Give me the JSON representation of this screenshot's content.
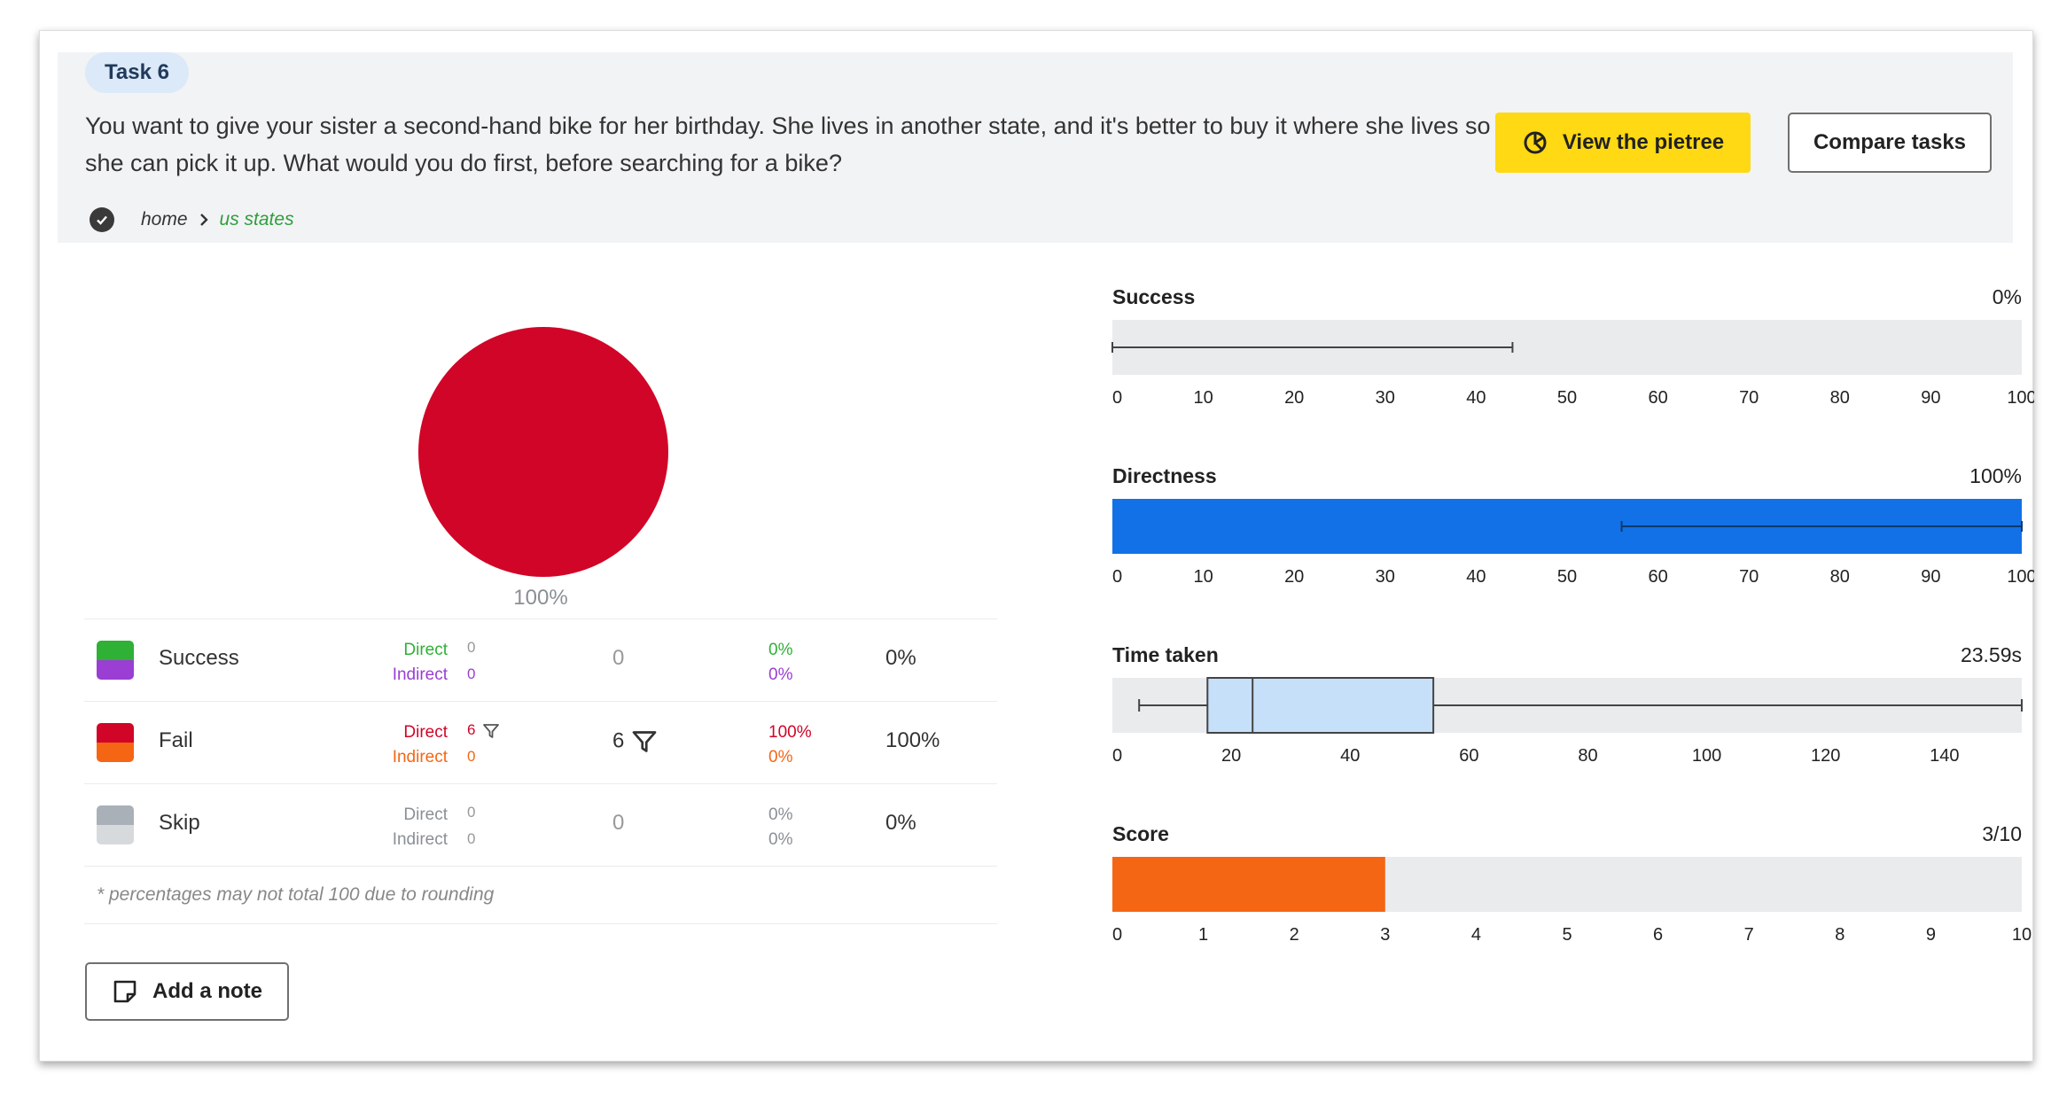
{
  "task": {
    "label": "Task 6",
    "question": "You want to give your sister a second-hand bike for her birthday. She lives in another state, and it's better to buy it where she lives so she can pick it up. What would you do first, before searching for a bike?",
    "path": [
      "home",
      "us states"
    ],
    "icons": {
      "path_status": "check-circle-icon",
      "separator": "chevron-right-icon"
    }
  },
  "buttons": {
    "pietree": {
      "label": "View the pietree",
      "icon": "pietree-icon",
      "color": "#ffd913"
    },
    "compare": {
      "label": "Compare tasks"
    },
    "note": {
      "label": "Add a note",
      "icon": "note-icon"
    }
  },
  "pie": {
    "label": "100%",
    "slices": [
      {
        "category": "Fail",
        "value": 100,
        "color": "#d10527"
      }
    ]
  },
  "results": [
    {
      "label": "Success",
      "colors": [
        "#2eb135",
        "#9a3ed4"
      ],
      "direct_label": "Direct",
      "indirect_label": "Indirect",
      "direct_count": "0",
      "indirect_count": "0",
      "total": "0",
      "direct_pct": "0%",
      "indirect_pct": "0%",
      "pct": "0%",
      "label_colors": [
        "#2eb135",
        "#9a3ed4"
      ],
      "has_filter": false
    },
    {
      "label": "Fail",
      "colors": [
        "#d10527",
        "#f56614"
      ],
      "direct_label": "Direct",
      "indirect_label": "Indirect",
      "direct_count": "6",
      "indirect_count": "0",
      "total": "6",
      "direct_pct": "100%",
      "indirect_pct": "0%",
      "pct": "100%",
      "label_colors": [
        "#d10527",
        "#f56614"
      ],
      "has_filter": true
    },
    {
      "label": "Skip",
      "colors": [
        "#a9b0b8",
        "#d7dadd"
      ],
      "direct_label": "Direct",
      "indirect_label": "Indirect",
      "direct_count": "0",
      "indirect_count": "0",
      "total": "0",
      "direct_pct": "0%",
      "indirect_pct": "0%",
      "pct": "0%",
      "label_colors": [
        "#8a8f96",
        "#8a8f96"
      ],
      "has_filter": false
    }
  ],
  "footnote": "* percentages may not total 100 due to rounding",
  "chart_data": [
    {
      "type": "bar",
      "title": "Success",
      "value_label": "0%",
      "value": 0,
      "range": [
        0,
        100
      ],
      "ticks": [
        0,
        10,
        20,
        30,
        40,
        50,
        60,
        70,
        80,
        90,
        100
      ],
      "whisker": [
        0,
        44
      ],
      "bar_color": "#1271e6"
    },
    {
      "type": "bar",
      "title": "Directness",
      "value_label": "100%",
      "value": 100,
      "range": [
        0,
        100
      ],
      "ticks": [
        0,
        10,
        20,
        30,
        40,
        50,
        60,
        70,
        80,
        90,
        100
      ],
      "whisker": [
        56,
        100
      ],
      "bar_color": "#1271e6"
    },
    {
      "type": "boxplot",
      "title": "Time taken",
      "value_label": "23.59s",
      "range": [
        0,
        153
      ],
      "ticks": [
        0,
        20,
        40,
        60,
        80,
        100,
        120,
        140
      ],
      "whisker_low": 4.5,
      "q1": 16,
      "median": 23.59,
      "q3": 54,
      "whisker_high": 153,
      "box_color": "#c6e0fa"
    },
    {
      "type": "bar",
      "title": "Score",
      "value_label": "3/10",
      "value": 3,
      "range": [
        0,
        10
      ],
      "ticks": [
        0,
        1,
        2,
        3,
        4,
        5,
        6,
        7,
        8,
        9,
        10
      ],
      "bar_color": "#f56614"
    }
  ]
}
